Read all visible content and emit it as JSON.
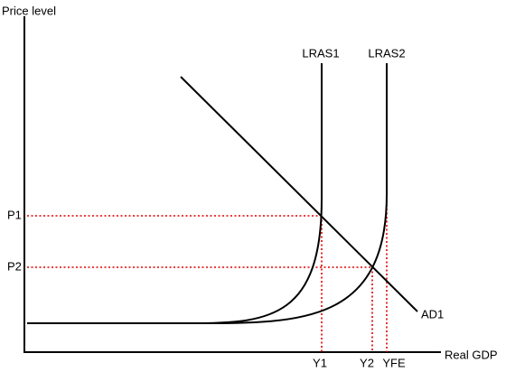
{
  "axes": {
    "y_label": "Price level",
    "x_label": "Real GDP"
  },
  "curves": {
    "lras1": "LRAS1",
    "lras2": "LRAS2",
    "ad1": "AD1"
  },
  "price_levels": [
    "P1",
    "P2"
  ],
  "outputs": [
    "Y1",
    "Y2",
    "YFE"
  ]
}
